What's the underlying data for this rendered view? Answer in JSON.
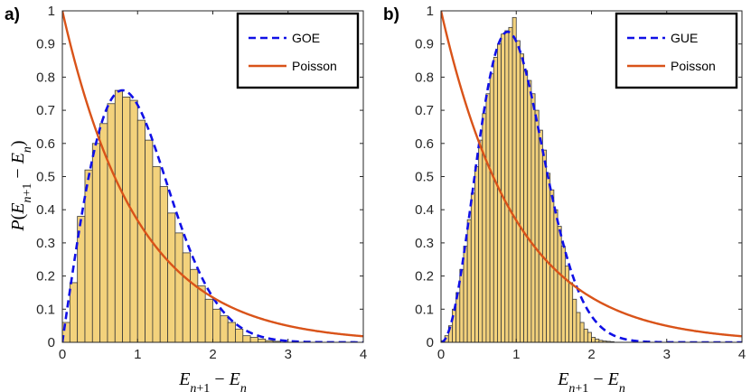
{
  "figure": {
    "background": "#ffffff"
  },
  "colors": {
    "bar_fill": "#f3d27c",
    "bar_stroke": "#3a3a3a",
    "rmt_curve": "#1010e6",
    "poisson_curve": "#d95319",
    "axis": "#262626"
  },
  "chart_data": [
    {
      "type": "bar",
      "panel_label": "a)",
      "title": "",
      "xlabel": "E_{n+1} - E_n",
      "ylabel": "P(E_{n+1} - E_n)",
      "xlim": [
        0,
        4
      ],
      "ylim": [
        0,
        1
      ],
      "xticks": [
        0,
        1,
        2,
        3,
        4
      ],
      "xtick_labels": [
        "0",
        "1",
        "2",
        "3",
        "4"
      ],
      "yticks": [
        0,
        0.1,
        0.2,
        0.3,
        0.4,
        0.5,
        0.6,
        0.7,
        0.8,
        0.9,
        1
      ],
      "ytick_labels": [
        "0",
        "0.1",
        "0.2",
        "0.3",
        "0.4",
        "0.5",
        "0.6",
        "0.7",
        "0.8",
        "0.9",
        "1"
      ],
      "histogram": {
        "bin_width": 0.1,
        "bin_start": 0.0,
        "values": [
          0.06,
          0.18,
          0.38,
          0.52,
          0.6,
          0.66,
          0.72,
          0.76,
          0.74,
          0.73,
          0.67,
          0.61,
          0.53,
          0.47,
          0.39,
          0.33,
          0.27,
          0.22,
          0.17,
          0.13,
          0.1,
          0.08,
          0.06,
          0.04,
          0.02,
          0.015,
          0.01,
          0.005,
          0.003
        ]
      },
      "series": [
        {
          "name": "GOE",
          "style": "dashed",
          "color": "#1010e6",
          "function": "goe"
        },
        {
          "name": "Poisson",
          "style": "solid",
          "color": "#d95319",
          "function": "poisson"
        }
      ],
      "legend_position": "top-right"
    },
    {
      "type": "bar",
      "panel_label": "b)",
      "title": "",
      "xlabel": "E_{n+1} - E_n",
      "ylabel": "",
      "xlim": [
        0,
        4
      ],
      "ylim": [
        0,
        1
      ],
      "xticks": [
        0,
        1,
        2,
        3,
        4
      ],
      "xtick_labels": [
        "0",
        "1",
        "2",
        "3",
        "4"
      ],
      "yticks": [
        0,
        0.1,
        0.2,
        0.3,
        0.4,
        0.5,
        0.6,
        0.7,
        0.8,
        0.9,
        1
      ],
      "ytick_labels": [
        "0",
        "0.1",
        "0.2",
        "0.3",
        "0.4",
        "0.5",
        "0.6",
        "0.7",
        "0.8",
        "0.9",
        "1"
      ],
      "histogram": {
        "bin_width": 0.05,
        "bin_start": 0.0,
        "values": [
          0.005,
          0.02,
          0.05,
          0.1,
          0.15,
          0.22,
          0.29,
          0.37,
          0.45,
          0.53,
          0.61,
          0.69,
          0.75,
          0.81,
          0.86,
          0.9,
          0.93,
          0.94,
          0.95,
          0.98,
          0.91,
          0.87,
          0.82,
          0.79,
          0.75,
          0.7,
          0.64,
          0.58,
          0.51,
          0.46,
          0.4,
          0.35,
          0.29,
          0.23,
          0.18,
          0.13,
          0.09,
          0.06,
          0.04,
          0.03,
          0.015,
          0.01,
          0.006,
          0.004,
          0.003,
          0.002
        ]
      },
      "series": [
        {
          "name": "GUE",
          "style": "dashed",
          "color": "#1010e6",
          "function": "gue"
        },
        {
          "name": "Poisson",
          "style": "solid",
          "color": "#d95319",
          "function": "poisson"
        }
      ],
      "legend_position": "top-right"
    }
  ]
}
